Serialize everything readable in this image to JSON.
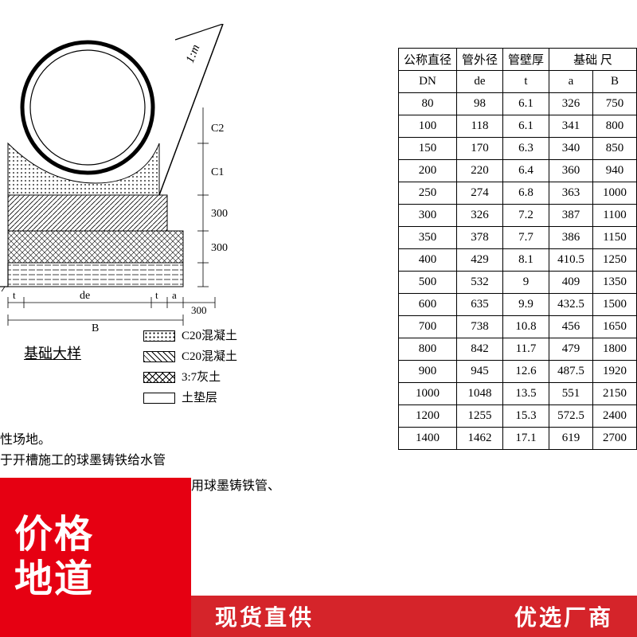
{
  "diagram": {
    "caption": "基础大样",
    "slope_label": "1:m",
    "dim_C2": "C2",
    "dim_C1": "C1",
    "dim_300_a": "300",
    "dim_300_b": "300",
    "dim_300_c": "300",
    "dim_de": "de",
    "dim_a": "a",
    "dim_B": "B",
    "dim_t_left": "t",
    "dim_t_right": "t",
    "legend": [
      {
        "label": "C20混凝土",
        "hatch": "hatch-dots"
      },
      {
        "label": "C20混凝土",
        "hatch": "hatch-diag"
      },
      {
        "label": "3:7灰土",
        "hatch": "hatch-cross"
      },
      {
        "label": "土垫层",
        "hatch": ""
      }
    ]
  },
  "table": {
    "header_group": "基础 尺",
    "columns": [
      "公称直径",
      "管外径",
      "管壁厚",
      "a",
      "B"
    ],
    "subheaders": [
      "DN",
      "de",
      "t",
      "",
      ""
    ],
    "rows": [
      [
        "80",
        "98",
        "6.1",
        "326",
        "750"
      ],
      [
        "100",
        "118",
        "6.1",
        "341",
        "800"
      ],
      [
        "150",
        "170",
        "6.3",
        "340",
        "850"
      ],
      [
        "200",
        "220",
        "6.4",
        "360",
        "940"
      ],
      [
        "250",
        "274",
        "6.8",
        "363",
        "1000"
      ],
      [
        "300",
        "326",
        "7.2",
        "387",
        "1100"
      ],
      [
        "350",
        "378",
        "7.7",
        "386",
        "1150"
      ],
      [
        "400",
        "429",
        "8.1",
        "410.5",
        "1250"
      ],
      [
        "500",
        "532",
        "9",
        "409",
        "1350"
      ],
      [
        "600",
        "635",
        "9.9",
        "432.5",
        "1500"
      ],
      [
        "700",
        "738",
        "10.8",
        "456",
        "1650"
      ],
      [
        "800",
        "842",
        "11.7",
        "479",
        "1800"
      ],
      [
        "900",
        "945",
        "12.6",
        "487.5",
        "1920"
      ],
      [
        "1000",
        "1048",
        "13.5",
        "551",
        "2150"
      ],
      [
        "1200",
        "1255",
        "15.3",
        "572.5",
        "2400"
      ],
      [
        "1400",
        "1462",
        "17.1",
        "619",
        "2700"
      ]
    ]
  },
  "notes": {
    "line1": "性场地。",
    "line2": "于开槽施工的球墨铸铁给水管",
    "line3": "用球墨铸铁管、"
  },
  "promo": {
    "line1": "价格",
    "line2": "地道"
  },
  "banner": {
    "left": "现货直供",
    "right": "优选厂商"
  },
  "colors": {
    "accent_red": "#e60012",
    "banner_red": "#d5242a"
  }
}
